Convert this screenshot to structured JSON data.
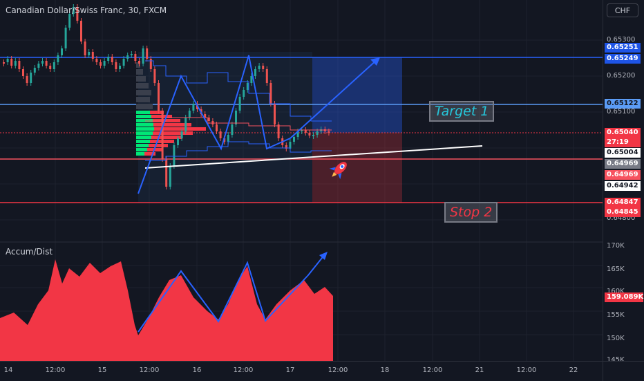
{
  "header": {
    "symbol": "Canadian Dollar/Swiss Franc, 30, FXCM",
    "currency_button": "CHF"
  },
  "indicator": {
    "title": "Accum/Dist",
    "value_tag": "159.089K",
    "axis_ticks": [
      "170K",
      "165K",
      "160K",
      "155K",
      "150K",
      "145K"
    ]
  },
  "price_axis": {
    "ticks": [
      "0.65300",
      "0.65200",
      "0.65100",
      "0.64800"
    ],
    "tags": [
      {
        "label": "0.65251",
        "bg": "#1e54e6",
        "fg": "#ffffff"
      },
      {
        "label": "0.65249",
        "bg": "#1e54e6",
        "fg": "#ffffff"
      },
      {
        "label": "0.65122",
        "bg": "#5b9cf6",
        "fg": "#131722"
      },
      {
        "label": "0.65040",
        "bg": "#f23645",
        "fg": "#ffffff"
      },
      {
        "label": "27:19",
        "bg": "#f23645",
        "fg": "#ffffff"
      },
      {
        "label": "0.65004",
        "bg": "#ffffff",
        "fg": "#131722"
      },
      {
        "label": "0.64969",
        "bg": "#787b86",
        "fg": "#ffffff"
      },
      {
        "label": "0.64969",
        "bg": "#f7525f",
        "fg": "#ffffff"
      },
      {
        "label": "0.64942",
        "bg": "#ffffff",
        "fg": "#131722"
      },
      {
        "label": "0.64847",
        "bg": "#f23645",
        "fg": "#ffffff"
      },
      {
        "label": "0.64845",
        "bg": "#f23645",
        "fg": "#ffffff"
      }
    ]
  },
  "time_axis": {
    "ticks": [
      "14",
      "12:00",
      "15",
      "12:00",
      "16",
      "12:00",
      "17",
      "12:00",
      "18",
      "12:00",
      "21",
      "12:00",
      "22"
    ]
  },
  "annotations": {
    "target": "Target 1",
    "stop": "Stop 2"
  },
  "colors": {
    "background": "#131722",
    "up": "#26a69a",
    "down": "#ef5350",
    "drawing_blue": "#2962ff",
    "ad_fill": "#f23645"
  },
  "icons": [
    "rocket-icon"
  ]
}
